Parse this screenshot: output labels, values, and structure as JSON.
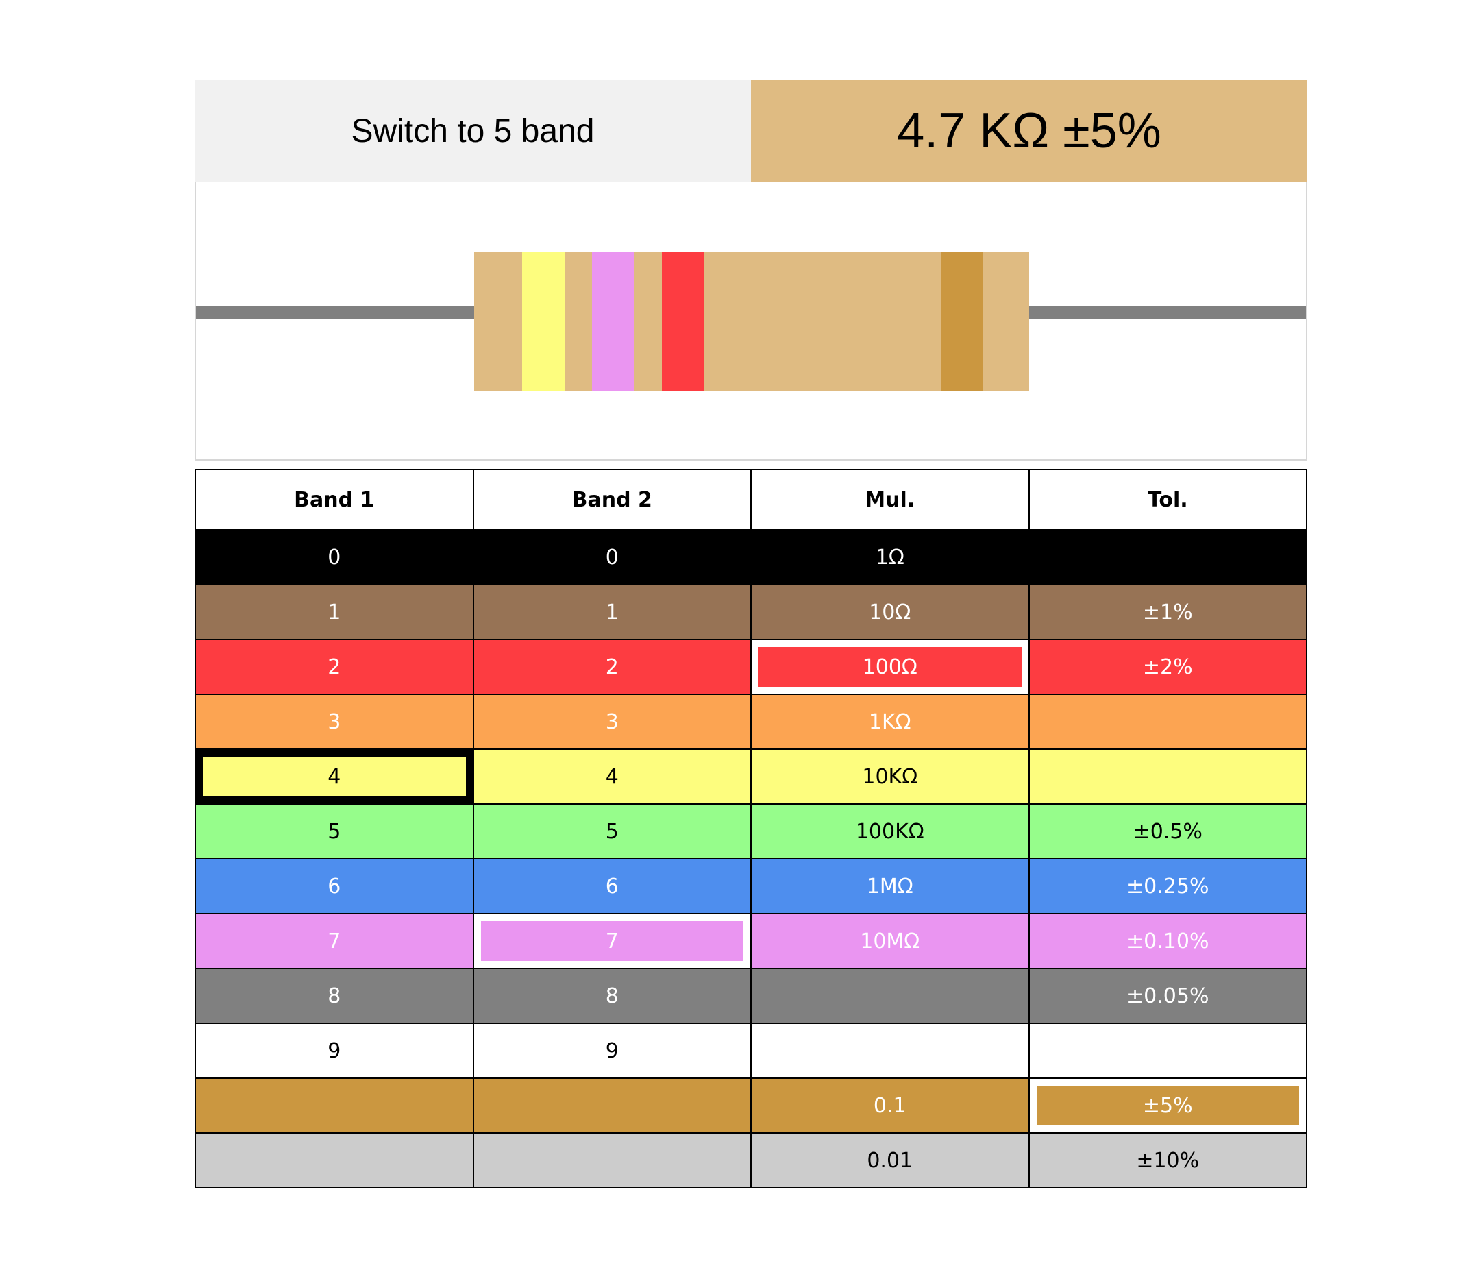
{
  "header": {
    "switch_label": "Switch to 5 band",
    "result": "4.7 KΩ ±5%",
    "result_bg": "#dfbb82"
  },
  "resistor": {
    "body_color": "#dfbb82",
    "lead_color": "#808080",
    "bands": [
      {
        "name": "yellow",
        "color": "#fdfd7e"
      },
      {
        "name": "violet",
        "color": "#ea95f1"
      },
      {
        "name": "red",
        "color": "#fd3c41"
      },
      {
        "name": "gold",
        "color": "#cb9740"
      }
    ]
  },
  "table": {
    "headers": [
      "Band 1",
      "Band 2",
      "Mul.",
      "Tol."
    ],
    "rows": [
      {
        "name": "black",
        "bg": "#000000",
        "fg": "#ffffff",
        "cells": [
          "0",
          "0",
          "1Ω",
          ""
        ]
      },
      {
        "name": "brown",
        "bg": "#977355",
        "fg": "#ffffff",
        "cells": [
          "1",
          "1",
          "10Ω",
          "±1%"
        ]
      },
      {
        "name": "red",
        "bg": "#fd3c41",
        "fg": "#ffffff",
        "cells": [
          "2",
          "2",
          "100Ω",
          "±2%"
        ]
      },
      {
        "name": "orange",
        "bg": "#fca452",
        "fg": "#ffffff",
        "cells": [
          "3",
          "3",
          "1KΩ",
          ""
        ]
      },
      {
        "name": "yellow",
        "bg": "#fdfd7e",
        "fg": "#000000",
        "cells": [
          "4",
          "4",
          "10KΩ",
          ""
        ]
      },
      {
        "name": "green",
        "bg": "#96fd8b",
        "fg": "#000000",
        "cells": [
          "5",
          "5",
          "100KΩ",
          "±0.5%"
        ]
      },
      {
        "name": "blue",
        "bg": "#4e8eee",
        "fg": "#ffffff",
        "cells": [
          "6",
          "6",
          "1MΩ",
          "±0.25%"
        ]
      },
      {
        "name": "violet",
        "bg": "#ea95f1",
        "fg": "#ffffff",
        "cells": [
          "7",
          "7",
          "10MΩ",
          "±0.10%"
        ]
      },
      {
        "name": "grey",
        "bg": "#808080",
        "fg": "#ffffff",
        "cells": [
          "8",
          "8",
          "",
          "±0.05%"
        ]
      },
      {
        "name": "white",
        "bg": "#ffffff",
        "fg": "#000000",
        "cells": [
          "9",
          "9",
          "",
          ""
        ]
      },
      {
        "name": "gold",
        "bg": "#cb9740",
        "fg": "#ffffff",
        "cells": [
          "",
          "",
          "0.1",
          "±5%"
        ]
      },
      {
        "name": "silver",
        "bg": "#cccccc",
        "fg": "#000000",
        "cells": [
          "",
          "",
          "0.01",
          "±10%"
        ]
      }
    ],
    "selected": [
      {
        "row": 4,
        "col": 0,
        "style": "black"
      },
      {
        "row": 7,
        "col": 1,
        "style": "white"
      },
      {
        "row": 2,
        "col": 2,
        "style": "white"
      },
      {
        "row": 10,
        "col": 3,
        "style": "white"
      }
    ]
  }
}
